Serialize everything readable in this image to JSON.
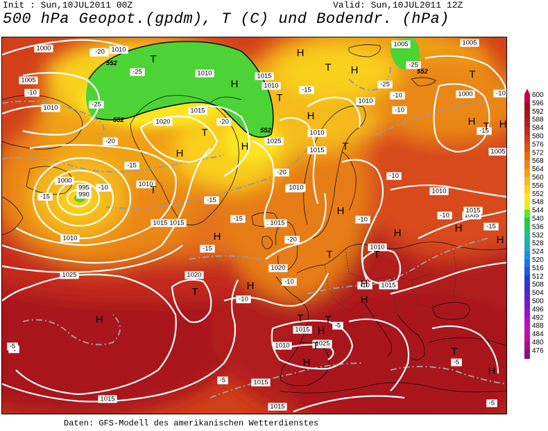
{
  "header": {
    "init": "Init : Sun,10JUL2011 00Z",
    "valid": "Valid: Sun,10JUL2011 12Z",
    "title": "500 hPa Geopot.(gpdm), T (C) und Bodendr. (hPa)"
  },
  "footer": "Daten: GFS-Modell des amerikanischen Wetterdienstes",
  "legend": {
    "labels": [
      "600",
      "596",
      "592",
      "588",
      "584",
      "580",
      "576",
      "572",
      "568",
      "564",
      "560",
      "556",
      "552",
      "548",
      "544",
      "540",
      "536",
      "532",
      "528",
      "524",
      "520",
      "516",
      "512",
      "508",
      "504",
      "500",
      "496",
      "492",
      "488",
      "484",
      "480",
      "476"
    ],
    "colors": [
      "#c7004d",
      "#9e0e1a",
      "#a8141c",
      "#b51c1f",
      "#c42a1e",
      "#d13c19",
      "#db5316",
      "#e36c13",
      "#ea8714",
      "#f0a016",
      "#f5ba1b",
      "#f9d01f",
      "#fbe421",
      "#dff020",
      "#59e82b",
      "#21cc3e",
      "#1fc476",
      "#1eb8a0",
      "#1ea8c8",
      "#1e8fe0",
      "#1c74e6",
      "#1c58e0",
      "#2040d4",
      "#3a2fcc",
      "#5a21cc",
      "#7a18cc",
      "#9a10cc",
      "#b510c6",
      "#c710b4",
      "#c010a0",
      "#a8108a",
      "#8e1080"
    ]
  },
  "map": {
    "isobar_labels": [
      "1000",
      "1010",
      "1005",
      "1010",
      "1010",
      "1015",
      "1010",
      "1020",
      "1025",
      "1015",
      "1010",
      "1010",
      "1005",
      "1005",
      "1000",
      "995",
      "990",
      "1010",
      "1015",
      "1010",
      "1010",
      "1015",
      "1020",
      "1020",
      "1025",
      "1015",
      "1010",
      "1015",
      "1015",
      "1015",
      "1010",
      "1005",
      "1005",
      "1000",
      "1010",
      "1015",
      "1010",
      "1015",
      "1015",
      "1010",
      "1025",
      "1015",
      "1015",
      "1015",
      "1010"
    ],
    "temp_labels": [
      "-20",
      "-25",
      "-10",
      "-25",
      "-20",
      "-20",
      "-15",
      "-20",
      "-15",
      "-10",
      "-15",
      "-15",
      "-10",
      "-20",
      "-15",
      "-10",
      "-5",
      "-25",
      "-25",
      "-15",
      "-10",
      "-10",
      "-10",
      "-15",
      "-10",
      "-10",
      "-15",
      "-10",
      "-10",
      "-5",
      "-5",
      "-5",
      "-5",
      "-5"
    ],
    "geopot_labels": [
      "552",
      "552",
      "552",
      "552"
    ],
    "highs": [
      "H",
      "H",
      "H",
      "H",
      "H",
      "H",
      "H",
      "H",
      "H",
      "H",
      "H",
      "H",
      "H",
      "H",
      "H",
      "H",
      "H",
      "H",
      "H",
      "H"
    ],
    "lows": [
      "T",
      "T",
      "T",
      "T",
      "T",
      "T",
      "T",
      "T",
      "T",
      "T",
      "T",
      "T",
      "T",
      "T",
      "T"
    ]
  }
}
